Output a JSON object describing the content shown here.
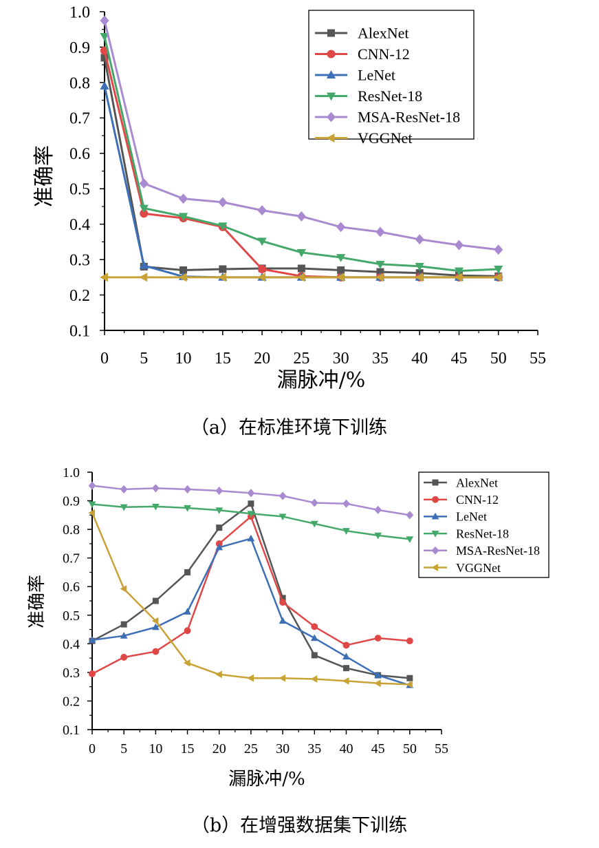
{
  "chart_data": [
    {
      "type": "line",
      "caption": "（a）在标准环境下训练",
      "xlabel": "漏脉冲/%",
      "ylabel": "准确率",
      "xlim": [
        0,
        55
      ],
      "ylim": [
        0.1,
        1.0
      ],
      "xticks": [
        "0",
        "5",
        "10",
        "15",
        "20",
        "25",
        "30",
        "35",
        "40",
        "45",
        "50",
        "55"
      ],
      "yticks": [
        "0.1",
        "0.2",
        "0.3",
        "0.4",
        "0.5",
        "0.6",
        "0.7",
        "0.8",
        "0.9",
        "1.0"
      ],
      "legend_position": "top-right",
      "x": [
        0,
        5,
        10,
        15,
        20,
        25,
        30,
        35,
        40,
        45,
        50
      ],
      "series": [
        {
          "name": "AlexNet",
          "color": "#555555",
          "marker": "square",
          "values": [
            0.87,
            0.28,
            0.27,
            0.273,
            0.275,
            0.275,
            0.27,
            0.265,
            0.262,
            0.255,
            0.253
          ]
        },
        {
          "name": "CNN-12",
          "color": "#e04848",
          "marker": "circle",
          "values": [
            0.89,
            0.43,
            0.417,
            0.392,
            0.273,
            0.253,
            0.25,
            0.25,
            0.25,
            0.25,
            0.25
          ]
        },
        {
          "name": "LeNet",
          "color": "#3d6fb6",
          "marker": "triangle-up",
          "values": [
            0.79,
            0.283,
            0.252,
            0.25,
            0.25,
            0.25,
            0.25,
            0.25,
            0.25,
            0.25,
            0.25
          ]
        },
        {
          "name": "ResNet-18",
          "color": "#45a86b",
          "marker": "triangle-down",
          "values": [
            0.93,
            0.445,
            0.422,
            0.395,
            0.352,
            0.32,
            0.306,
            0.287,
            0.281,
            0.268,
            0.273
          ]
        },
        {
          "name": "MSA-ResNet-18",
          "color": "#a98ad0",
          "marker": "diamond",
          "values": [
            0.975,
            0.515,
            0.472,
            0.462,
            0.439,
            0.422,
            0.392,
            0.378,
            0.357,
            0.341,
            0.328
          ]
        },
        {
          "name": "VGGNet",
          "color": "#c9a235",
          "marker": "triangle-left",
          "values": [
            0.25,
            0.25,
            0.25,
            0.25,
            0.25,
            0.25,
            0.25,
            0.25,
            0.25,
            0.25,
            0.25
          ]
        }
      ]
    },
    {
      "type": "line",
      "caption": "（b）在增强数据集下训练",
      "xlabel": "漏脉冲/%",
      "ylabel": "准确率",
      "xlim": [
        0,
        55
      ],
      "ylim": [
        0.1,
        1.0
      ],
      "xticks": [
        "0",
        "5",
        "10",
        "15",
        "20",
        "25",
        "30",
        "35",
        "40",
        "45",
        "50",
        "55"
      ],
      "yticks": [
        "0.1",
        "0.2",
        "0.3",
        "0.4",
        "0.5",
        "0.6",
        "0.7",
        "0.8",
        "0.9",
        "1.0"
      ],
      "legend_position": "top-right",
      "x": [
        0,
        5,
        10,
        15,
        20,
        25,
        30,
        35,
        40,
        45,
        50
      ],
      "series": [
        {
          "name": "AlexNet",
          "color": "#555555",
          "marker": "square",
          "values": [
            0.41,
            0.468,
            0.55,
            0.65,
            0.806,
            0.89,
            0.56,
            0.36,
            0.315,
            0.29,
            0.28
          ]
        },
        {
          "name": "CNN-12",
          "color": "#e04848",
          "marker": "circle",
          "values": [
            0.295,
            0.353,
            0.373,
            0.446,
            0.75,
            0.845,
            0.545,
            0.46,
            0.395,
            0.42,
            0.41
          ]
        },
        {
          "name": "LeNet",
          "color": "#3d6fb6",
          "marker": "triangle-up",
          "values": [
            0.413,
            0.428,
            0.458,
            0.512,
            0.737,
            0.768,
            0.48,
            0.42,
            0.355,
            0.29,
            0.255
          ]
        },
        {
          "name": "ResNet-18",
          "color": "#45a86b",
          "marker": "triangle-down",
          "values": [
            0.888,
            0.878,
            0.88,
            0.875,
            0.867,
            0.855,
            0.845,
            0.82,
            0.795,
            0.779,
            0.766
          ]
        },
        {
          "name": "MSA-ResNet-18",
          "color": "#a98ad0",
          "marker": "diamond",
          "values": [
            0.953,
            0.94,
            0.944,
            0.94,
            0.935,
            0.927,
            0.917,
            0.893,
            0.89,
            0.868,
            0.85
          ]
        },
        {
          "name": "VGGNet",
          "color": "#c9a235",
          "marker": "triangle-left",
          "values": [
            0.858,
            0.592,
            0.48,
            0.333,
            0.293,
            0.28,
            0.28,
            0.277,
            0.27,
            0.262,
            0.258
          ]
        }
      ]
    }
  ]
}
